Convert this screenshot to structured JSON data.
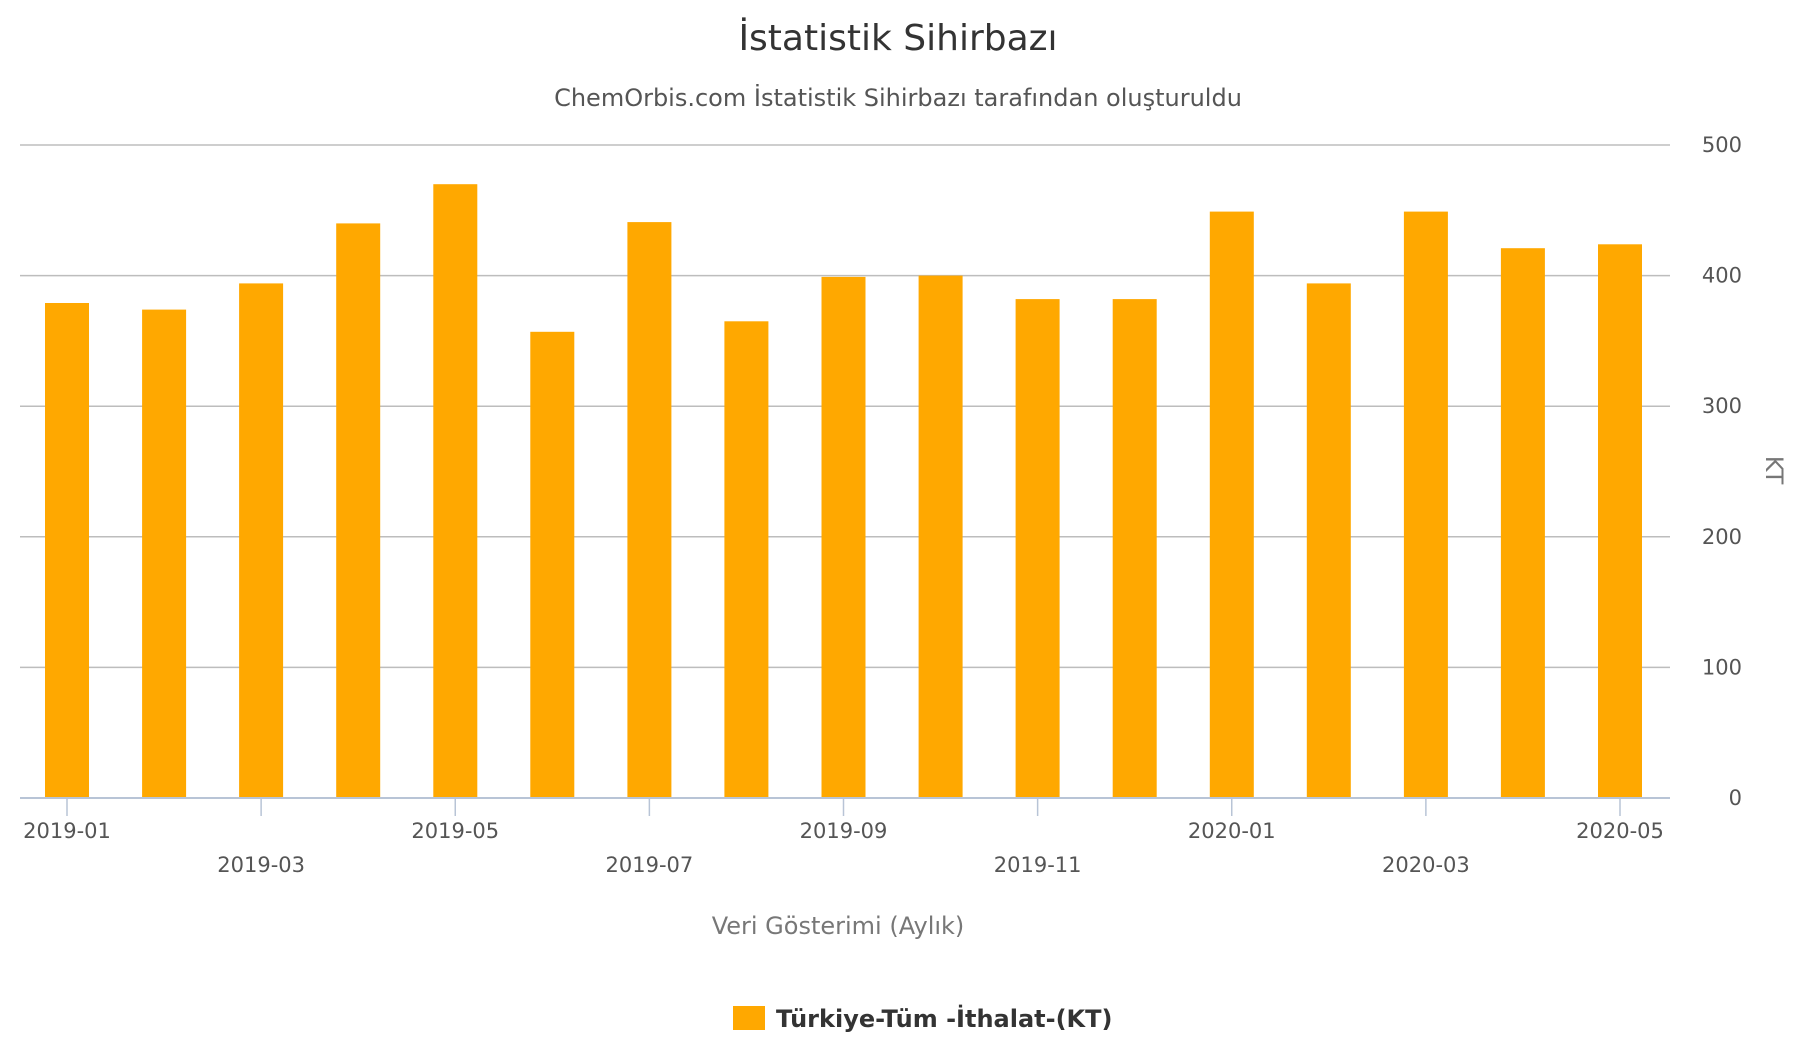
{
  "chart_data": {
    "type": "bar",
    "title": "İstatistik Sihirbazı",
    "subtitle": "ChemOrbis.com İstatistik Sihirbazı tarafından oluşturuldu",
    "xlabel": "Veri Gösterimi (Aylık)",
    "ylabel": "KT",
    "ylim": [
      0,
      500
    ],
    "y_ticks": [
      0,
      100,
      200,
      300,
      400,
      500
    ],
    "y_axis_side": "right",
    "grid": true,
    "legend_position": "bottom-center",
    "x_axis": {
      "type": "date",
      "start": "2019-01",
      "end": "2020-05",
      "labels": [
        "2019-01",
        "2019-03",
        "2019-05",
        "2019-07",
        "2019-09",
        "2019-11",
        "2020-01",
        "2020-03",
        "2020-05"
      ]
    },
    "series": [
      {
        "name": "Türkiye-Tüm -İthalat-(KT)",
        "color": "#FFA800",
        "x": [
          "2019-01",
          "2019-02",
          "2019-03",
          "2019-04",
          "2019-05",
          "2019-06",
          "2019-07",
          "2019-08",
          "2019-09",
          "2019-10",
          "2019-11",
          "2019-12",
          "2020-01",
          "2020-02",
          "2020-03",
          "2020-04",
          "2020-05"
        ],
        "values": [
          379,
          374,
          394,
          440,
          470,
          357,
          441,
          365,
          399,
          400,
          382,
          382,
          449,
          394,
          449,
          421,
          424
        ]
      }
    ]
  },
  "colors": {
    "bar": "#FFA800",
    "grid": "#bdbdbd",
    "axis_line": "#b8c4d6",
    "text": "#333333"
  }
}
